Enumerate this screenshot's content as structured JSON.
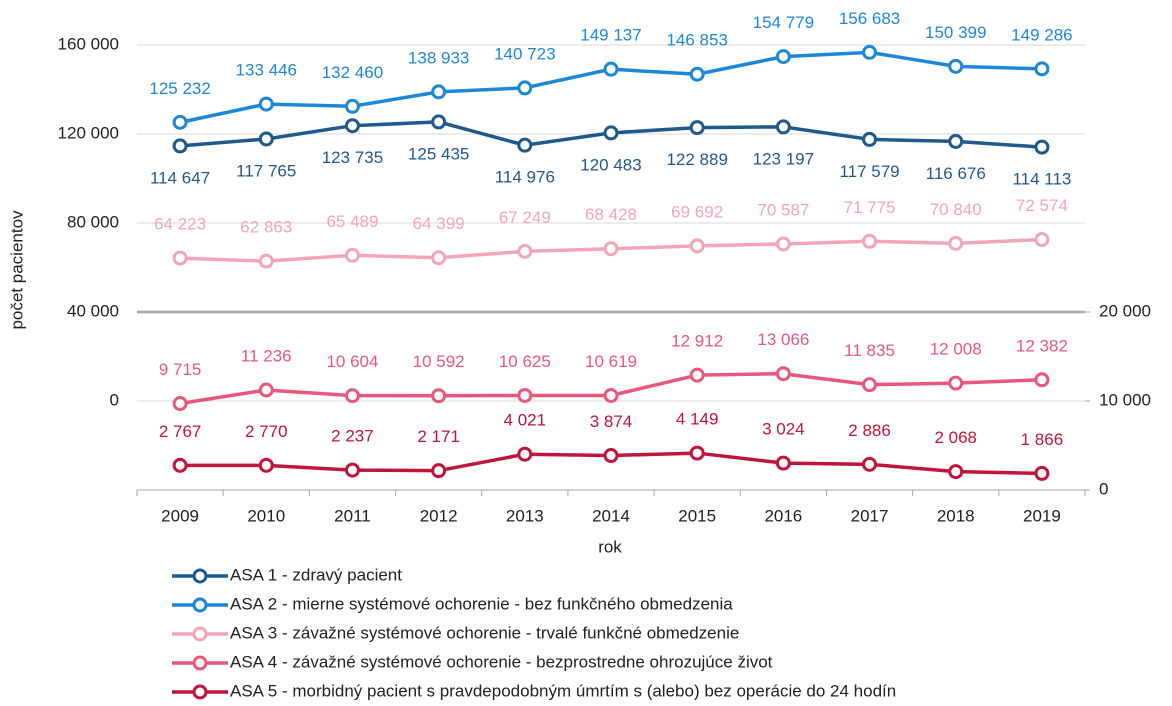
{
  "chart_data": {
    "type": "line",
    "x_label": "rok",
    "y_label": "počet pacientov",
    "categories": [
      "2009",
      "2010",
      "2011",
      "2012",
      "2013",
      "2014",
      "2015",
      "2016",
      "2017",
      "2018",
      "2019"
    ],
    "ylim": [
      -40000,
      160000
    ],
    "yticks": [
      0,
      {
        "value": 40000,
        "label": "40 000"
      },
      {
        "value": 80000,
        "label": "80 000"
      },
      {
        "value": 120000,
        "label": "120 000"
      },
      {
        "value": 160000,
        "label": "160 000"
      }
    ],
    "y2lim": [
      0,
      50000
    ],
    "y2ticks": [
      0,
      {
        "value": 10000,
        "label": "10 000"
      },
      {
        "value": 20000,
        "label": "20 000"
      }
    ],
    "grid": true,
    "series": [
      {
        "name": "ASA 1 - zdravý pacient",
        "color": "#1f5a8c",
        "values": [
          114647,
          117765,
          123735,
          125435,
          114976,
          120483,
          122889,
          123197,
          117579,
          116676,
          114113
        ],
        "value_labels": [
          "114 647",
          "117 765",
          "123 735",
          "125 435",
          "114 976",
          "120 483",
          "122 889",
          "123 197",
          "117 579",
          "116 676",
          "114 113"
        ]
      },
      {
        "name": "ASA 2 - mierne systémové ochorenie - bez funkčného obmedzenia",
        "color": "#1e88d8",
        "values": [
          125232,
          133446,
          132460,
          138933,
          140723,
          149137,
          146853,
          154779,
          156683,
          150399,
          149286
        ],
        "value_labels": [
          "125 232",
          "133 446",
          "132 460",
          "138 933",
          "140 723",
          "149 137",
          "146 853",
          "154 779",
          "156 683",
          "150 399",
          "149 286"
        ]
      },
      {
        "name": "ASA 3 - závažné systémové ochorenie - trvalé funkčné obmedzenie",
        "color": "#f4a6b8",
        "values": [
          64223,
          62863,
          65489,
          64399,
          67249,
          68428,
          69692,
          70587,
          71775,
          70840,
          72574
        ],
        "value_labels": [
          "64 223",
          "62 863",
          "65 489",
          "64 399",
          "67 249",
          "68 428",
          "69 692",
          "70 587",
          "71 775",
          "70 840",
          "72 574"
        ]
      },
      {
        "name": "ASA 4 - závažné systémové ochorenie - bezprostredne ohrozujúce život",
        "color": "#e9587a",
        "axis": "y2",
        "values": [
          9715,
          11236,
          10604,
          10592,
          10625,
          10619,
          12912,
          13066,
          11835,
          12008,
          12382
        ],
        "value_labels": [
          "9 715",
          "11 236",
          "10 604",
          "10 592",
          "10 625",
          "10 619",
          "12 912",
          "13 066",
          "11 835",
          "12 008",
          "12 382"
        ]
      },
      {
        "name": "ASA 5 - morbidný pacient s pravdepodobným úmrtím s (alebo) bez operácie do 24 hodín",
        "color": "#c0143c",
        "axis": "y2",
        "values": [
          2767,
          2770,
          2237,
          2171,
          4021,
          3874,
          4149,
          3024,
          2886,
          2068,
          1866
        ],
        "value_labels": [
          "2 767",
          "2 770",
          "2 237",
          "2 171",
          "4 021",
          "3 874",
          "4 149",
          "3 024",
          "2 886",
          "2 068",
          "1 866"
        ]
      }
    ]
  }
}
